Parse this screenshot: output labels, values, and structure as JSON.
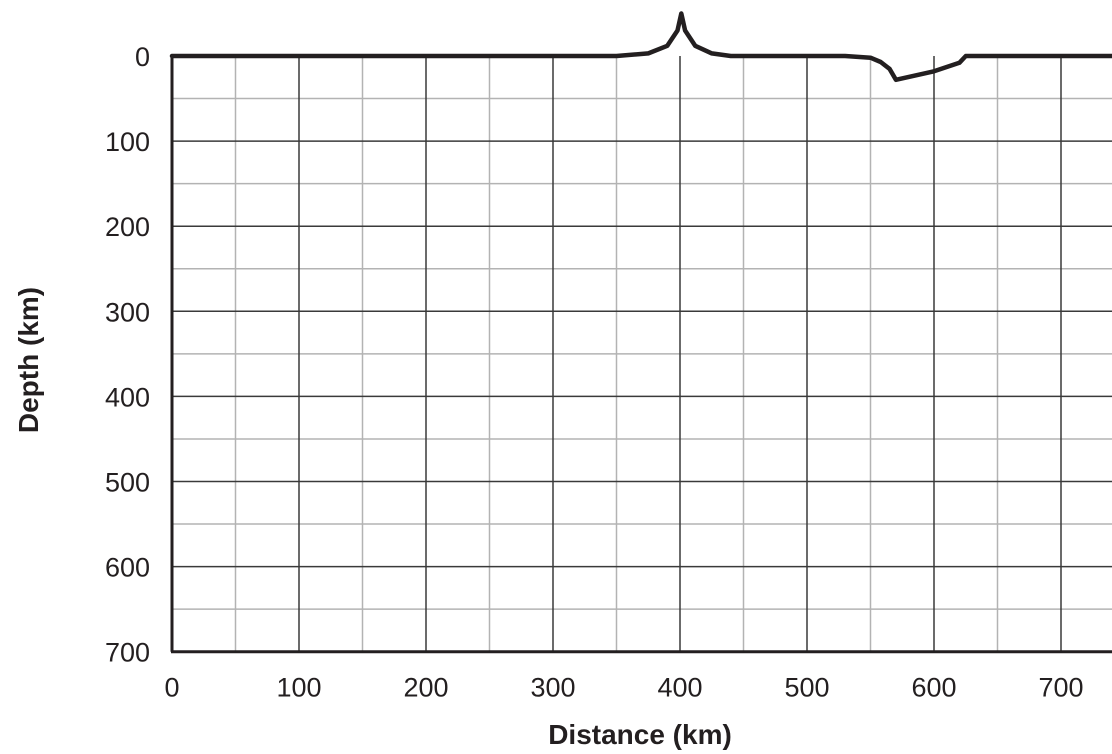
{
  "chart_data": {
    "type": "line",
    "title": "",
    "xlabel": "Distance (km)",
    "ylabel": "Depth (km)",
    "xlim": [
      0,
      740
    ],
    "ylim": [
      0,
      700
    ],
    "y_inverted": true,
    "x_ticks": [
      0,
      100,
      200,
      300,
      400,
      500,
      600,
      700
    ],
    "y_ticks": [
      0,
      100,
      200,
      300,
      400,
      500,
      600,
      700
    ],
    "x_tick_labels": [
      "0",
      "100",
      "200",
      "300",
      "400",
      "500",
      "600",
      "700"
    ],
    "y_tick_labels": [
      "0",
      "100",
      "200",
      "300",
      "400",
      "500",
      "600",
      "700"
    ],
    "grid": true,
    "minor_grid_step": 50,
    "major_grid_step": 100,
    "legend": "none",
    "profile_note": "surface profile plotted at depth 0; peak near 400 km rises above the surface, notch near 570 km dips to about 30 km depth",
    "series": [
      {
        "x": [
          0,
          350,
          375,
          390,
          398,
          401,
          404,
          412,
          425,
          440,
          460,
          500,
          530,
          550,
          558,
          565,
          570,
          600,
          620,
          625,
          740
        ],
        "y": [
          0,
          0,
          -3,
          -12,
          -30,
          -50,
          -30,
          -12,
          -3,
          0,
          0,
          0,
          0,
          2,
          7,
          15,
          28,
          18,
          8,
          0,
          0
        ]
      }
    ],
    "colors": {
      "line": "#231f20",
      "major_grid": "#3a3a3a",
      "minor_grid": "#b3b3b3",
      "text": "#231f20"
    }
  }
}
